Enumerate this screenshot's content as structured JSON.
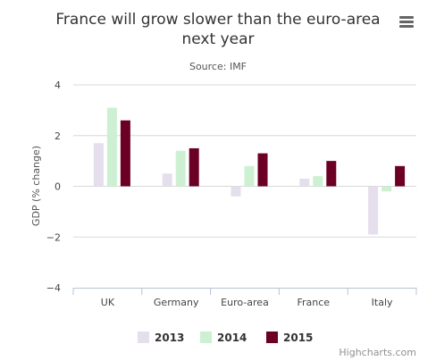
{
  "chart_data": {
    "type": "bar",
    "title": "France will grow slower than the euro-area next year",
    "title_lines": [
      "France will grow slower than the euro-area",
      "next year"
    ],
    "subtitle": "Source: IMF",
    "xlabel": "",
    "ylabel": "GDP (% change)",
    "ylim": [
      -4,
      4
    ],
    "yticks": [
      -4,
      -2,
      0,
      2,
      4
    ],
    "yticks_labels": [
      "−4",
      "−2",
      "0",
      "2",
      "4"
    ],
    "grid": true,
    "legend_position": "bottom-center",
    "categories": [
      "UK",
      "Germany",
      "Euro-area",
      "France",
      "Italy"
    ],
    "series": [
      {
        "name": "2013",
        "color": "#e5deec",
        "values": [
          1.7,
          0.5,
          -0.4,
          0.3,
          -1.9
        ]
      },
      {
        "name": "2014",
        "color": "#cdf0d3",
        "values": [
          3.1,
          1.4,
          0.8,
          0.4,
          -0.2
        ]
      },
      {
        "name": "2015",
        "color": "#6b0024",
        "values": [
          2.6,
          1.5,
          1.3,
          1.0,
          0.8
        ]
      }
    ]
  },
  "credits": "Highcharts.com",
  "menu_icon": "hamburger-menu-icon"
}
